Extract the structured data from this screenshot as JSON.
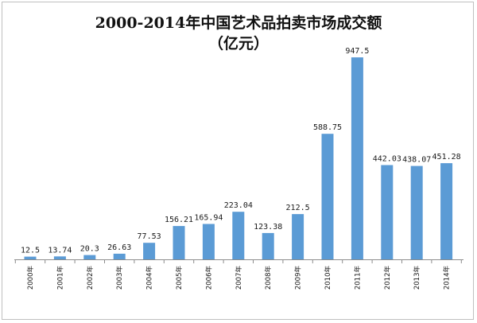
{
  "chart_data": {
    "type": "bar",
    "title": "2000-2014年中国艺术品拍卖市场成交额",
    "subtitle": "（亿元）",
    "categories": [
      "2000年",
      "2001年",
      "2002年",
      "2003年",
      "2004年",
      "2005年",
      "2006年",
      "2007年",
      "2008年",
      "2009年",
      "2010年",
      "2011年",
      "2012年",
      "2013年",
      "2014年"
    ],
    "value_labels": [
      "12.5",
      "13.74",
      "20.3",
      "26.63",
      "77.53",
      "156.21",
      "165.94",
      "223.04",
      "123.38",
      "212.5",
      "588.75",
      "947.5",
      "442.03",
      "438.07",
      "451.28"
    ],
    "values": [
      12.5,
      13.74,
      20.3,
      26.63,
      77.53,
      156.21,
      165.94,
      223.04,
      123.38,
      212.5,
      588.75,
      947.5,
      442.03,
      438.07,
      451.28
    ],
    "ylim": [
      0,
      1000
    ],
    "grid": false,
    "legend": "none",
    "bar_color": "#5b9bd5"
  }
}
